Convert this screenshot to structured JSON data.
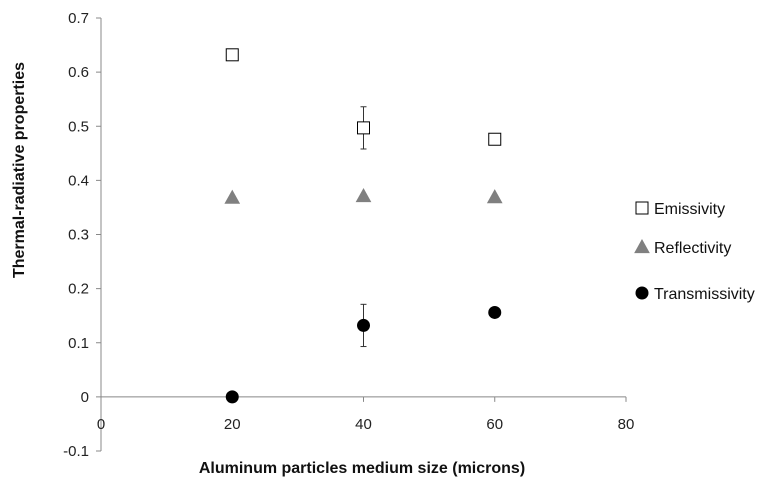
{
  "chart_data": {
    "type": "scatter",
    "xlabel": "Aluminum particles medium size (microns)",
    "ylabel": "Thermal-radiative properties",
    "xlim": [
      0,
      80
    ],
    "ylim": [
      -0.1,
      0.7
    ],
    "x_ticks": [
      0,
      20,
      40,
      60,
      80
    ],
    "x_tick_labels": [
      "0",
      "20",
      "40",
      "60",
      "80"
    ],
    "y_ticks": [
      -0.1,
      0,
      0.1,
      0.2,
      0.3,
      0.4,
      0.5,
      0.6,
      0.7
    ],
    "y_tick_labels": [
      "-0.1",
      "0",
      "0.1",
      "0.2",
      "0.3",
      "0.4",
      "0.5",
      "0.6",
      "0.7"
    ],
    "grid": false,
    "legend_position": "right",
    "series": [
      {
        "name": "Emissivity",
        "marker": "open-square",
        "color": "#000000",
        "points": [
          {
            "x": 20,
            "y": 0.632
          },
          {
            "x": 40,
            "y": 0.497,
            "err": 0.039
          },
          {
            "x": 60,
            "y": 0.476
          }
        ]
      },
      {
        "name": "Reflectivity",
        "marker": "triangle",
        "color": "#808080",
        "points": [
          {
            "x": 20,
            "y": 0.368
          },
          {
            "x": 40,
            "y": 0.371
          },
          {
            "x": 60,
            "y": 0.369
          }
        ]
      },
      {
        "name": "Transmissivity",
        "marker": "circle",
        "color": "#000000",
        "points": [
          {
            "x": 20,
            "y": 0.0
          },
          {
            "x": 40,
            "y": 0.132,
            "err": 0.039
          },
          {
            "x": 60,
            "y": 0.156
          }
        ]
      }
    ]
  }
}
